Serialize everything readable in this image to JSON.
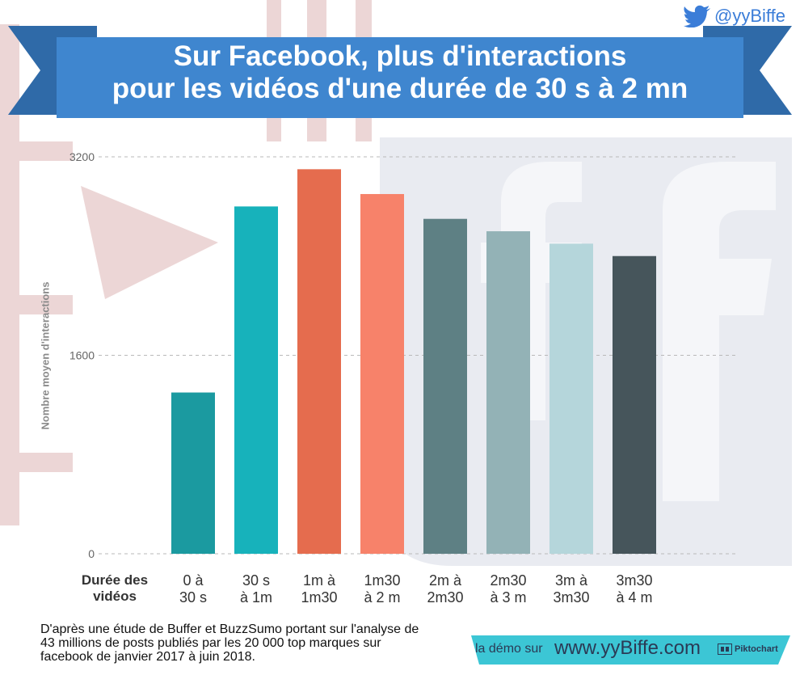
{
  "header": {
    "handle": "@yyBiffe",
    "title_line1": "Sur Facebook, plus d'interactions",
    "title_line2": "pour les vidéos d'une durée de 30 s à 2 mn"
  },
  "colors": {
    "banner": "#3f86cf",
    "banner_dark": "#2f6aa8",
    "twitter": "#3b7dd8",
    "footer_band": "#3cc6d5"
  },
  "chart_data": {
    "type": "bar",
    "ylabel": "Nombre moyen d'interactions",
    "xlabel": "Durée des vidéos",
    "ylim": [
      0,
      3200
    ],
    "yticks": [
      0,
      1600,
      3200
    ],
    "grid": true,
    "categories": [
      "0 à\n30 s",
      "30 s\nà 1m",
      "1m à\n1m30",
      "1m30\nà 2 m",
      "2m à\n2m30",
      "2m30\nà 3 m",
      "3m à\n3m30",
      "3m30\nà 4 m"
    ],
    "values": [
      1300,
      2800,
      3100,
      2900,
      2700,
      2600,
      2500,
      2400
    ],
    "colors": [
      "#1b9aa0",
      "#17b2bb",
      "#e56c4e",
      "#f7826a",
      "#5e8084",
      "#93b2b6",
      "#b5d6db",
      "#46555b"
    ]
  },
  "footer": {
    "note": "D'après une étude de Buffer et BuzzSumo portant sur l'analyse de 43 millions de posts publiés par les 20 000 top marques sur facebook de janvier 2017 à juin 2018.",
    "demo_label": "la démo sur",
    "site": "www.yyBiffe.com",
    "pikto_label": "Piktochart"
  }
}
